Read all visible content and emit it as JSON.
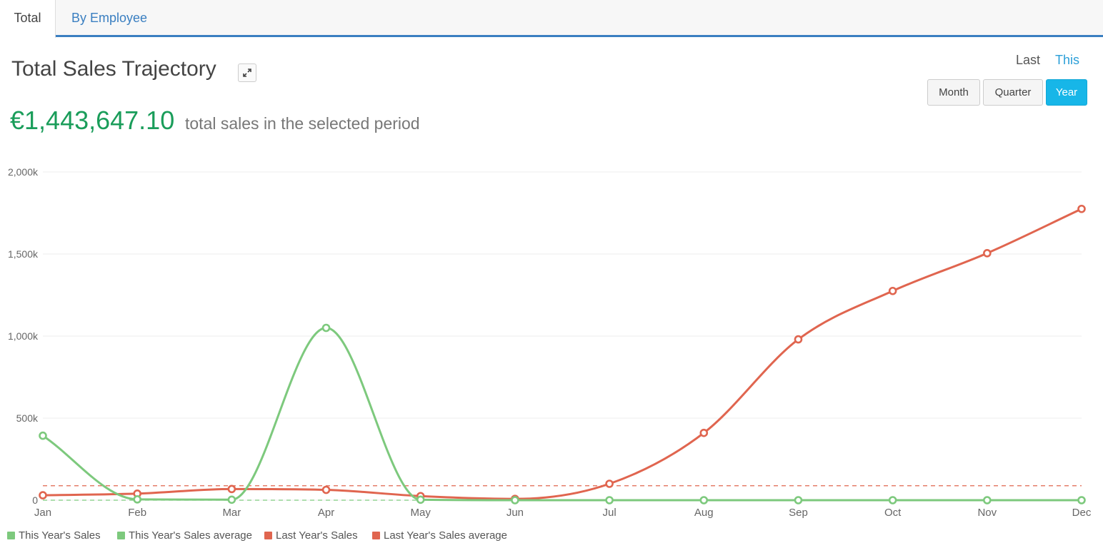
{
  "tabs": [
    {
      "label": "Total",
      "active": true
    },
    {
      "label": "By Employee",
      "active": false
    }
  ],
  "header": {
    "title": "Total Sales Trajectory",
    "expand_icon": "expand-arrows-icon",
    "total_value": "€1,443,647.10",
    "total_caption": "total sales in the selected period"
  },
  "period": {
    "last_label": "Last",
    "this_label": "This",
    "month_label": "Month",
    "quarter_label": "Quarter",
    "year_label": "Year",
    "selected": "Year"
  },
  "legend": [
    {
      "label": "This Year's Sales",
      "color": "#7dc97d"
    },
    {
      "label": "This Year's Sales average",
      "color": "#7dc97d"
    },
    {
      "label": "Last Year's Sales",
      "color": "#e0654f"
    },
    {
      "label": "Last Year's Sales average",
      "color": "#e0654f"
    }
  ],
  "chart_data": {
    "type": "line",
    "categories": [
      "Jan",
      "Feb",
      "Mar",
      "Apr",
      "May",
      "Jun",
      "Jul",
      "Aug",
      "Sep",
      "Oct",
      "Nov",
      "Dec"
    ],
    "y_ticks": [
      "0",
      "500k",
      "1,000k",
      "1,500k",
      "2,000k"
    ],
    "y_tick_values": [
      0,
      500000,
      1000000,
      1500000,
      2000000
    ],
    "ylim": [
      0,
      2000000
    ],
    "grid": true,
    "series": [
      {
        "name": "This Year's Sales",
        "color": "#7dc97d",
        "values": [
          393000,
          5000,
          3000,
          1050000,
          3000,
          0,
          0,
          0,
          0,
          0,
          0,
          0
        ]
      },
      {
        "name": "Last Year's Sales",
        "color": "#e0654f",
        "values": [
          30000,
          40000,
          68000,
          63000,
          25000,
          8000,
          100000,
          410000,
          980000,
          1275000,
          1505000,
          1775000
        ]
      }
    ],
    "averages": [
      {
        "name": "This Year's Sales average",
        "color": "#7dc97d",
        "value": 0
      },
      {
        "name": "Last Year's Sales average",
        "color": "#e0654f",
        "value": 88000
      }
    ]
  }
}
